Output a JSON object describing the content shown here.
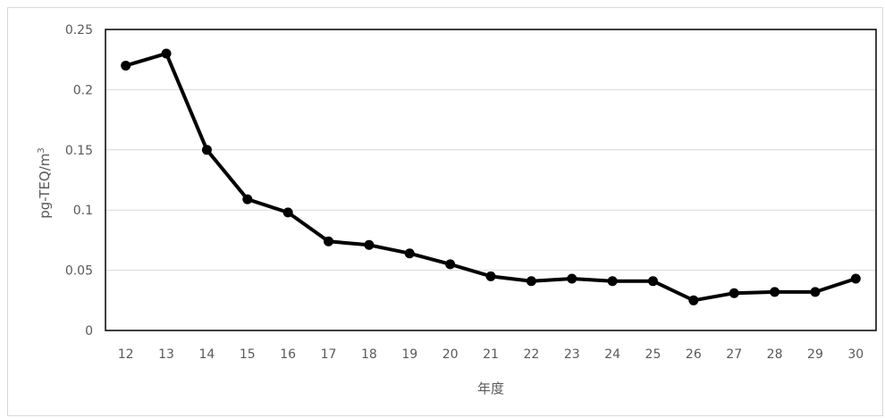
{
  "chart_data": {
    "type": "line",
    "title": "",
    "xlabel": "年度",
    "ylabel": "pg-TEQ/m",
    "ylabel_superscript": "3",
    "categories": [
      "12",
      "13",
      "14",
      "15",
      "16",
      "17",
      "18",
      "19",
      "20",
      "21",
      "22",
      "23",
      "24",
      "25",
      "26",
      "27",
      "28",
      "29",
      "30"
    ],
    "values": [
      0.22,
      0.23,
      0.15,
      0.109,
      0.098,
      0.074,
      0.071,
      0.064,
      0.055,
      0.045,
      0.041,
      0.043,
      0.041,
      0.041,
      0.025,
      0.031,
      0.032,
      0.032,
      0.043
    ],
    "ylim": [
      0,
      0.25
    ],
    "yticks": [
      "0",
      "0.05",
      "0.1",
      "0.15",
      "0.2",
      "0.25"
    ],
    "grid": true,
    "legend": "none",
    "line_color": "#000000",
    "grid_color": "#d9d9d9"
  }
}
